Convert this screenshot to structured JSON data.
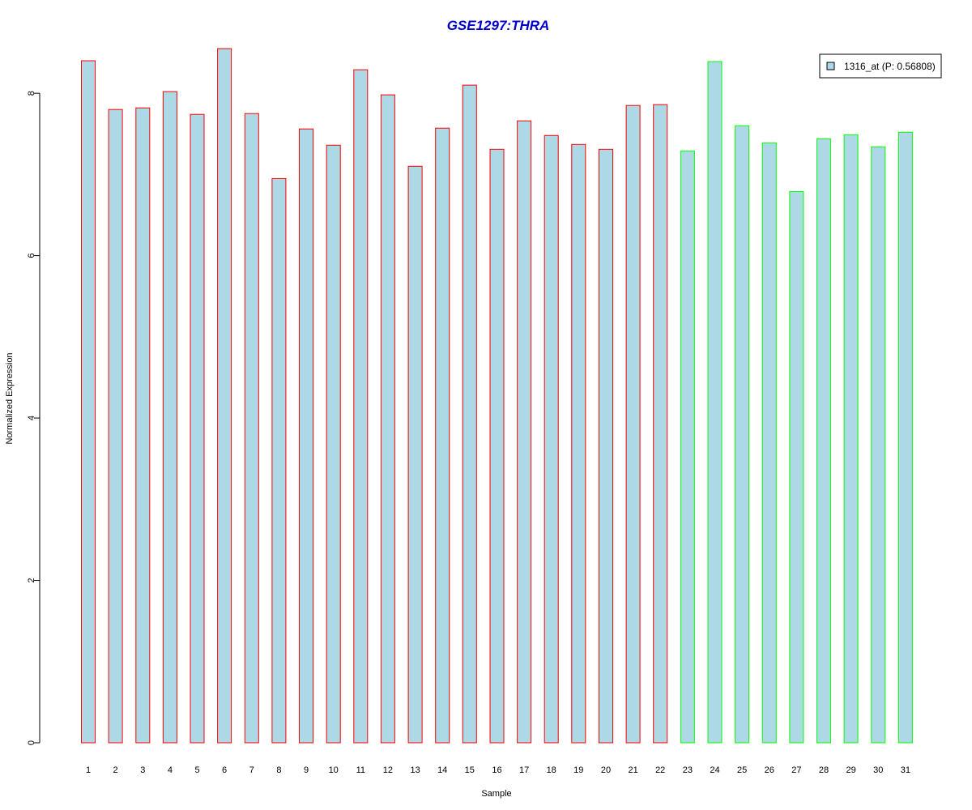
{
  "chart_data": {
    "type": "bar",
    "title": "GSE1297:THRA",
    "xlabel": "Sample",
    "ylabel": "Normalized Expression",
    "categories": [
      "1",
      "2",
      "3",
      "4",
      "5",
      "6",
      "7",
      "8",
      "9",
      "10",
      "11",
      "12",
      "13",
      "14",
      "15",
      "16",
      "17",
      "18",
      "19",
      "20",
      "21",
      "22",
      "23",
      "24",
      "25",
      "26",
      "27",
      "28",
      "29",
      "30",
      "31"
    ],
    "values": [
      8.4,
      7.8,
      7.82,
      8.02,
      7.74,
      8.55,
      7.75,
      6.95,
      7.56,
      7.36,
      8.29,
      7.98,
      7.1,
      7.57,
      8.1,
      7.31,
      7.66,
      7.48,
      7.37,
      7.31,
      7.85,
      7.86,
      7.29,
      8.39,
      7.6,
      7.39,
      6.79,
      7.44,
      7.49,
      7.34,
      7.52
    ],
    "groups": [
      1,
      1,
      1,
      1,
      1,
      1,
      1,
      1,
      1,
      1,
      1,
      1,
      1,
      1,
      1,
      1,
      1,
      1,
      1,
      1,
      1,
      1,
      2,
      2,
      2,
      2,
      2,
      2,
      2,
      2,
      2
    ],
    "ylim": [
      0,
      8.6
    ],
    "yticks": [
      0,
      2,
      4,
      6,
      8
    ],
    "grid": false,
    "legend": {
      "label": "1316_at (P: 0.56808)",
      "position": "top-right"
    },
    "colors": {
      "fill": "#add8e6",
      "group1_border": "#ff0000",
      "group2_border": "#00ff00",
      "title": "#0000cd"
    }
  }
}
